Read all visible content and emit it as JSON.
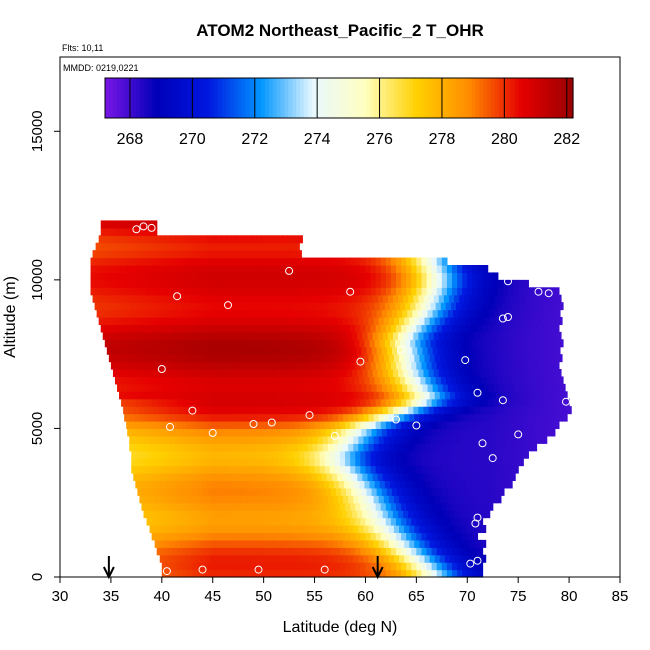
{
  "chart_data": {
    "type": "heatmap",
    "title": "ATOM2 Northeast_Pacific_2 T_OHR",
    "subtitle_flights": "Flts: 10,11",
    "subtitle_dates": "MMDD: 0219,0221",
    "xlabel": "Latitude (deg N)",
    "ylabel": "Altitude (m)",
    "xlim": [
      30,
      85
    ],
    "ylim": [
      0,
      17500
    ],
    "x_ticks": [
      "30",
      "35",
      "40",
      "45",
      "50",
      "55",
      "60",
      "65",
      "70",
      "75",
      "80",
      "85"
    ],
    "y_ticks": [
      "0",
      "5000",
      "10000",
      "15000"
    ],
    "colorbar": {
      "range": [
        267.2,
        282.2
      ],
      "ticks": [
        "268",
        "270",
        "272",
        "274",
        "276",
        "278",
        "280",
        "282"
      ],
      "colors": [
        "#7a16e6",
        "#0000b8",
        "#0018e0",
        "#0096ff",
        "#e8f8ff",
        "#ffffc0",
        "#ffd000",
        "#ff8c00",
        "#e60000",
        "#9a0000"
      ]
    },
    "grid": false,
    "legend_position": "top",
    "heatmap_cell": {
      "dx": 0.5,
      "dz": 250
    },
    "heatmap_rows": [
      {
        "z": 125,
        "x0": 40.0,
        "x1": 71.5
      },
      {
        "z": 375,
        "x0": 40.0,
        "x1": 71.5
      },
      {
        "z": 625,
        "x0": 39.8,
        "x1": 71.5
      },
      {
        "z": 875,
        "x0": 39.5,
        "x1": 71.5
      },
      {
        "z": 1125,
        "x0": 39.3,
        "x1": 71.5
      },
      {
        "z": 1375,
        "x0": 39.0,
        "x1": 71.0
      },
      {
        "z": 1625,
        "x0": 38.8,
        "x1": 71.5
      },
      {
        "z": 1875,
        "x0": 38.5,
        "x1": 71.5
      },
      {
        "z": 2125,
        "x0": 38.2,
        "x1": 72.0
      },
      {
        "z": 2375,
        "x0": 38.0,
        "x1": 72.5
      },
      {
        "z": 2625,
        "x0": 37.8,
        "x1": 73.0
      },
      {
        "z": 2875,
        "x0": 37.6,
        "x1": 73.5
      },
      {
        "z": 3125,
        "x0": 37.4,
        "x1": 74.0
      },
      {
        "z": 3375,
        "x0": 37.2,
        "x1": 74.5
      },
      {
        "z": 3625,
        "x0": 37.0,
        "x1": 75.0
      },
      {
        "z": 3875,
        "x0": 37.0,
        "x1": 75.5
      },
      {
        "z": 4125,
        "x0": 37.0,
        "x1": 76.0
      },
      {
        "z": 4375,
        "x0": 36.8,
        "x1": 76.5
      },
      {
        "z": 4625,
        "x0": 36.8,
        "x1": 77.5
      },
      {
        "z": 4875,
        "x0": 36.6,
        "x1": 78.5
      },
      {
        "z": 5125,
        "x0": 36.5,
        "x1": 79.0
      },
      {
        "z": 5375,
        "x0": 36.3,
        "x1": 79.5
      },
      {
        "z": 5625,
        "x0": 36.2,
        "x1": 80.0
      },
      {
        "z": 5875,
        "x0": 36.0,
        "x1": 80.0
      },
      {
        "z": 6125,
        "x0": 35.8,
        "x1": 79.5
      },
      {
        "z": 6375,
        "x0": 35.6,
        "x1": 79.5
      },
      {
        "z": 6625,
        "x0": 35.4,
        "x1": 79.0
      },
      {
        "z": 6875,
        "x0": 35.2,
        "x1": 79.0
      },
      {
        "z": 7125,
        "x0": 35.0,
        "x1": 79.0
      },
      {
        "z": 7375,
        "x0": 34.8,
        "x1": 79.0
      },
      {
        "z": 7625,
        "x0": 34.6,
        "x1": 79.0
      },
      {
        "z": 7875,
        "x0": 34.4,
        "x1": 79.0
      },
      {
        "z": 8125,
        "x0": 34.2,
        "x1": 79.0
      },
      {
        "z": 8375,
        "x0": 34.0,
        "x1": 79.0
      },
      {
        "z": 8625,
        "x0": 33.8,
        "x1": 79.0
      },
      {
        "z": 8875,
        "x0": 33.6,
        "x1": 79.0
      },
      {
        "z": 9125,
        "x0": 33.4,
        "x1": 79.0
      },
      {
        "z": 9375,
        "x0": 33.2,
        "x1": 79.0
      },
      {
        "z": 9625,
        "x0": 33.0,
        "x1": 79.0
      },
      {
        "z": 9875,
        "x0": 33.0,
        "x1": 76.0
      },
      {
        "z": 10125,
        "x0": 33.0,
        "x1": 73.0
      },
      {
        "z": 10375,
        "x0": 33.0,
        "x1": 72.0
      },
      {
        "z": 10625,
        "x0": 33.0,
        "x1": 68.0
      },
      {
        "z": 10875,
        "x0": 33.2,
        "x1": 53.5
      },
      {
        "z": 11125,
        "x0": 33.5,
        "x1": 53.5
      },
      {
        "z": 11375,
        "x0": 33.8,
        "x1": 53.5
      },
      {
        "z": 11625,
        "x0": 34.0,
        "x1": 39.5
      },
      {
        "z": 11875,
        "x0": 34.0,
        "x1": 39.5
      }
    ],
    "bands": [
      {
        "z": 0,
        "cold_x": 67.0,
        "warm": 280.0
      },
      {
        "z": 1000,
        "cold_x": 64.0,
        "warm": 279.5
      },
      {
        "z": 2000,
        "cold_x": 62.0,
        "warm": 278.8
      },
      {
        "z": 3000,
        "cold_x": 60.0,
        "warm": 278.5
      },
      {
        "z": 4000,
        "cold_x": 58.0,
        "warm": 278.3
      },
      {
        "z": 5000,
        "cold_x": 60.0,
        "warm": 278.8
      },
      {
        "z": 5500,
        "cold_x": 63.0,
        "warm": 280.0
      },
      {
        "z": 6000,
        "cold_x": 66.0,
        "warm": 281.0
      },
      {
        "z": 7000,
        "cold_x": 64.0,
        "warm": 281.5
      },
      {
        "z": 8000,
        "cold_x": 63.5,
        "warm": 281.3
      },
      {
        "z": 9000,
        "cold_x": 66.0,
        "warm": 281.0
      },
      {
        "z": 10000,
        "cold_x": 67.0,
        "warm": 280.5
      },
      {
        "z": 11000,
        "cold_x": 66.0,
        "warm": 280.5
      },
      {
        "z": 12000,
        "cold_x": 66.0,
        "warm": 281.5
      }
    ],
    "points": [
      [
        40.5,
        200
      ],
      [
        44.0,
        250
      ],
      [
        49.5,
        250
      ],
      [
        56.0,
        250
      ],
      [
        70.3,
        450
      ],
      [
        71.0,
        550
      ],
      [
        70.8,
        1800
      ],
      [
        71.0,
        2000
      ],
      [
        72.5,
        4000
      ],
      [
        71.5,
        4500
      ],
      [
        75.0,
        4800
      ],
      [
        65.0,
        5100
      ],
      [
        63.0,
        5300
      ],
      [
        49.0,
        5150
      ],
      [
        50.8,
        5200
      ],
      [
        54.5,
        5450
      ],
      [
        57.0,
        4750
      ],
      [
        45.0,
        4850
      ],
      [
        40.8,
        5050
      ],
      [
        43.0,
        5600
      ],
      [
        71.0,
        6200
      ],
      [
        73.5,
        5950
      ],
      [
        79.7,
        5900
      ],
      [
        40.0,
        7000
      ],
      [
        59.5,
        7250
      ],
      [
        69.8,
        7300
      ],
      [
        63.5,
        7650
      ],
      [
        73.5,
        8700
      ],
      [
        74.0,
        8750
      ],
      [
        46.5,
        9150
      ],
      [
        41.5,
        9450
      ],
      [
        58.5,
        9600
      ],
      [
        77.0,
        9600
      ],
      [
        78.0,
        9550
      ],
      [
        52.5,
        10300
      ],
      [
        74.0,
        9950
      ],
      [
        37.5,
        11700
      ],
      [
        38.2,
        11800
      ],
      [
        39.0,
        11750
      ]
    ],
    "markers": [
      {
        "x": 34.8
      },
      {
        "x": 61.2
      }
    ]
  }
}
